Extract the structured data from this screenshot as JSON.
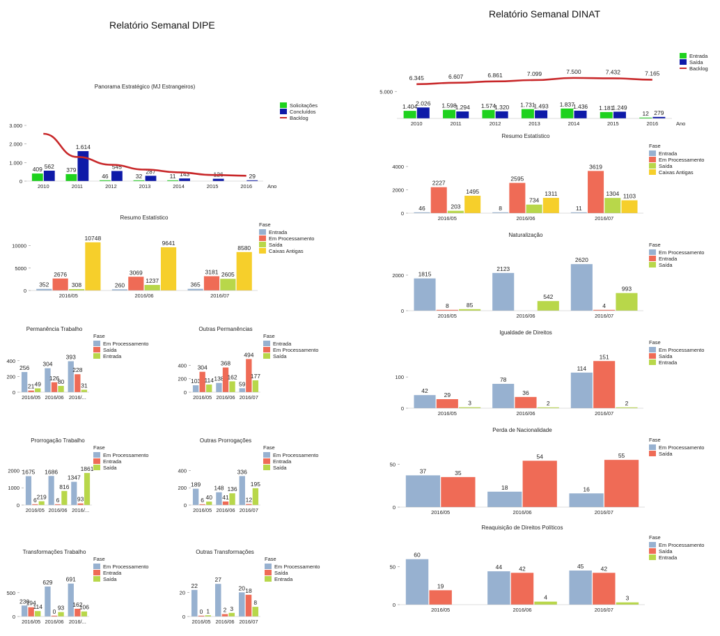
{
  "titles": {
    "dipe": "Relatório Semanal DIPE",
    "dinat": "Relatório Semanal DINAT"
  },
  "colors": {
    "blue": "#97b1d0",
    "red": "#ef6b56",
    "green": "#b8d74a",
    "yellow": "#f6cf2b",
    "bright_green": "#1ed21e",
    "navy": "#0e1aa8",
    "backlog": "#c8282a"
  },
  "chart_data": [
    {
      "id": "dipe-panorama",
      "type": "bar",
      "title": "Panorama Estratégico (MJ Estrangeiros)",
      "categories": [
        "2010",
        "2011",
        "2012",
        "2013",
        "2014",
        "2015",
        "2016"
      ],
      "x_suffix": "Ano",
      "series": [
        {
          "name": "Solicitações",
          "color": "#1ed21e",
          "values": [
            409,
            379,
            46,
            32,
            11,
            null,
            null
          ],
          "labels": [
            "409",
            "379",
            "46",
            "32",
            "11",
            "",
            ""
          ]
        },
        {
          "name": "Concluídos",
          "color": "#0e1aa8",
          "values": [
            562,
            1614,
            545,
            287,
            143,
            126,
            29
          ],
          "labels": [
            "562",
            "1.614",
            "545",
            "287",
            "143",
            "126",
            "29"
          ]
        },
        {
          "name": "Backlog",
          "color": "#c8282a",
          "type": "line",
          "values": [
            2550,
            1300,
            880,
            620,
            470,
            330,
            290
          ]
        }
      ],
      "ylim": [
        0,
        3000
      ],
      "yticks": [
        0,
        1000,
        2000,
        3000
      ],
      "ytick_labels": [
        "0",
        "1.000",
        "2.000",
        "3.000"
      ],
      "legend": "top-right"
    },
    {
      "id": "dipe-resumo",
      "type": "bar",
      "title": "Resumo Estatístico",
      "legend_title": "Fase",
      "categories": [
        "2016/05",
        "2016/06",
        "2016/07"
      ],
      "series": [
        {
          "name": "Entrada",
          "color": "#97b1d0",
          "values": [
            352,
            260,
            365
          ]
        },
        {
          "name": "Em Processamento",
          "color": "#ef6b56",
          "values": [
            2676,
            3069,
            3181
          ]
        },
        {
          "name": "Saída",
          "color": "#b8d74a",
          "values": [
            308,
            1237,
            2605
          ]
        },
        {
          "name": "Caixas Antigas",
          "color": "#f6cf2b",
          "values": [
            10748,
            9641,
            8580
          ]
        }
      ],
      "ylim": [
        0,
        11500
      ],
      "yticks": [
        0,
        5000,
        10000
      ],
      "legend": "right"
    },
    {
      "id": "dipe-permanencia",
      "type": "bar",
      "title": "Permanência Trabalho",
      "legend_title": "Fase",
      "categories": [
        "2016/05",
        "2016/06",
        "2016/..."
      ],
      "series": [
        {
          "name": "Em Processamento",
          "color": "#97b1d0",
          "values": [
            256,
            304,
            393
          ]
        },
        {
          "name": "Saída",
          "color": "#ef6b56",
          "values": [
            21,
            126,
            228
          ]
        },
        {
          "name": "Entrada",
          "color": "#b8d74a",
          "values": [
            49,
            80,
            31
          ]
        }
      ],
      "ylim": [
        0,
        460
      ],
      "yticks": [
        0,
        200,
        400
      ],
      "legend": "right"
    },
    {
      "id": "dipe-outras-permanencias",
      "type": "bar",
      "title": "Outras Permanências",
      "legend_title": "Fase",
      "categories": [
        "2016/05",
        "2016/06",
        "2016/07"
      ],
      "series": [
        {
          "name": "Entrada",
          "color": "#97b1d0",
          "values": [
            103,
            138,
            59
          ]
        },
        {
          "name": "Em Processamento",
          "color": "#ef6b56",
          "values": [
            304,
            368,
            494
          ]
        },
        {
          "name": "Saída",
          "color": "#b8d74a",
          "values": [
            114,
            162,
            177
          ]
        }
      ],
      "ylim": [
        0,
        540
      ],
      "yticks": [
        0,
        200,
        400
      ],
      "legend": "right"
    },
    {
      "id": "dipe-prorrogacao",
      "type": "bar",
      "title": "Prorrogação Trabalho",
      "legend_title": "Fase",
      "categories": [
        "2016/05",
        "2016/06",
        "2016/..."
      ],
      "series": [
        {
          "name": "Em Processamento",
          "color": "#97b1d0",
          "values": [
            1675,
            1686,
            1347
          ]
        },
        {
          "name": "Entrada",
          "color": "#ef6b56",
          "values": [
            6,
            6,
            93
          ]
        },
        {
          "name": "Saída",
          "color": "#b8d74a",
          "values": [
            219,
            816,
            1861
          ]
        }
      ],
      "ylim": [
        0,
        2100
      ],
      "yticks": [
        0,
        1000,
        2000
      ],
      "legend": "right"
    },
    {
      "id": "dipe-outras-prorrogacoes",
      "type": "bar",
      "title": "Outras Prorrogações",
      "legend_title": "Fase",
      "categories": [
        "2016/05",
        "2016/06",
        "2016/07"
      ],
      "series": [
        {
          "name": "Em Processamento",
          "color": "#97b1d0",
          "values": [
            189,
            148,
            336
          ]
        },
        {
          "name": "Entrada",
          "color": "#ef6b56",
          "values": [
            6,
            41,
            12
          ]
        },
        {
          "name": "Saída",
          "color": "#b8d74a",
          "values": [
            40,
            136,
            195
          ]
        }
      ],
      "ylim": [
        0,
        420
      ],
      "yticks": [
        0,
        200,
        400
      ],
      "legend": "right"
    },
    {
      "id": "dipe-transformacoes",
      "type": "bar",
      "title": "Transformações Trabalho",
      "legend_title": "Fase",
      "categories": [
        "2016/05",
        "2016/06",
        "2016/..."
      ],
      "series": [
        {
          "name": "Em Processamento",
          "color": "#97b1d0",
          "values": [
            230,
            629,
            691
          ]
        },
        {
          "name": "Entrada",
          "color": "#ef6b56",
          "values": [
            194,
            0,
            162
          ]
        },
        {
          "name": "Saída",
          "color": "#b8d74a",
          "values": [
            114,
            93,
            106
          ]
        }
      ],
      "ylim": [
        0,
        760
      ],
      "yticks": [
        0,
        500
      ],
      "ytick_labels": [
        "0",
        "500"
      ],
      "legend": "right"
    },
    {
      "id": "dipe-outras-transformacoes",
      "type": "bar",
      "title": "Outras Transformações",
      "legend_title": "Fase",
      "categories": [
        "2016/05",
        "2016/06",
        "2016/07"
      ],
      "series": [
        {
          "name": "Em Processamento",
          "color": "#97b1d0",
          "values": [
            22,
            27,
            20
          ]
        },
        {
          "name": "Saída",
          "color": "#ef6b56",
          "values": [
            0,
            2,
            18
          ]
        },
        {
          "name": "Entrada",
          "color": "#b8d74a",
          "values": [
            1,
            3,
            8
          ]
        }
      ],
      "ylim": [
        0,
        30
      ],
      "yticks": [
        0,
        20
      ],
      "legend": "right"
    },
    {
      "id": "dinat-panorama",
      "type": "bar",
      "title": "",
      "categories": [
        "2010",
        "2011",
        "2012",
        "2013",
        "2014",
        "2015",
        "2016"
      ],
      "x_suffix": "Ano",
      "series": [
        {
          "name": "Entrada",
          "color": "#1ed21e",
          "values": [
            1404,
            1598,
            1574,
            1731,
            1837,
            1181,
            12
          ],
          "labels": [
            "1.404",
            "1.598",
            "1.574",
            "1.731",
            "1.837",
            "1.181",
            "12"
          ]
        },
        {
          "name": "Saída",
          "color": "#0e1aa8",
          "values": [
            2026,
            1294,
            1320,
            1493,
            1436,
            1249,
            279
          ],
          "labels": [
            "2.026",
            "1.294",
            "1.320",
            "1.493",
            "1.436",
            "1.249",
            "279"
          ]
        },
        {
          "name": "Backlog",
          "color": "#c8282a",
          "type": "line",
          "values": [
            6345,
            6607,
            6861,
            7099,
            7500,
            7432,
            7165
          ],
          "labels": [
            "6.345",
            "6.607",
            "6.861",
            "7.099",
            "7.500",
            "7.432",
            "7.165"
          ]
        }
      ],
      "ylim": [
        0,
        8000
      ],
      "yticks": [
        5000
      ],
      "ytick_labels": [
        "5.000"
      ],
      "legend": "top-right"
    },
    {
      "id": "dinat-resumo",
      "type": "bar",
      "title": "Resumo Estatístico",
      "legend_title": "Fase",
      "categories": [
        "2016/05",
        "2016/06",
        "2016/07"
      ],
      "series": [
        {
          "name": "Entrada",
          "color": "#97b1d0",
          "values": [
            46,
            8,
            11
          ]
        },
        {
          "name": "Em Processamento",
          "color": "#ef6b56",
          "values": [
            2227,
            2595,
            3619
          ]
        },
        {
          "name": "Saída",
          "color": "#b8d74a",
          "values": [
            203,
            734,
            1304
          ]
        },
        {
          "name": "Caixas Antigas",
          "color": "#f6cf2b",
          "values": [
            1495,
            1311,
            1103
          ]
        }
      ],
      "ylim": [
        0,
        4300
      ],
      "yticks": [
        0,
        2000,
        4000
      ],
      "legend": "right"
    },
    {
      "id": "dinat-naturalizacao",
      "type": "bar",
      "title": "Naturalização",
      "legend_title": "Fase",
      "categories": [
        "2016/05",
        "2016/06",
        "2016/07"
      ],
      "series": [
        {
          "name": "Em Processamento",
          "color": "#97b1d0",
          "values": [
            1815,
            2123,
            2620
          ]
        },
        {
          "name": "Entrada",
          "color": "#ef6b56",
          "values": [
            8,
            null,
            4
          ]
        },
        {
          "name": "Saída",
          "color": "#b8d74a",
          "values": [
            85,
            542,
            993
          ]
        }
      ],
      "ylim": [
        0,
        2900
      ],
      "yticks": [
        0,
        2000
      ],
      "legend": "right"
    },
    {
      "id": "dinat-igualdade",
      "type": "bar",
      "title": "Igualdade de Direitos",
      "legend_title": "Fase",
      "categories": [
        "2016/05",
        "2016/06",
        "2016/07"
      ],
      "series": [
        {
          "name": "Em Processamento",
          "color": "#97b1d0",
          "values": [
            42,
            78,
            114
          ]
        },
        {
          "name": "Saída",
          "color": "#ef6b56",
          "values": [
            29,
            36,
            151
          ]
        },
        {
          "name": "Entrada",
          "color": "#b8d74a",
          "values": [
            3,
            2,
            2
          ]
        }
      ],
      "ylim": [
        0,
        165
      ],
      "yticks": [
        0,
        100
      ],
      "legend": "right"
    },
    {
      "id": "dinat-perda",
      "type": "bar",
      "title": "Perda de Nacionalidade",
      "legend_title": "Fase",
      "categories": [
        "2016/05",
        "2016/06",
        "2016/07"
      ],
      "series": [
        {
          "name": "Em Processamento",
          "color": "#97b1d0",
          "values": [
            37,
            18,
            16
          ]
        },
        {
          "name": "Saída",
          "color": "#ef6b56",
          "values": [
            35,
            54,
            55
          ]
        }
      ],
      "ylim": [
        0,
        60
      ],
      "yticks": [
        0,
        50
      ],
      "legend": "right"
    },
    {
      "id": "dinat-reaquisicao",
      "type": "bar",
      "title": "Reaquisição de Direitos Políticos",
      "legend_title": "Fase",
      "categories": [
        "2016/05",
        "2016/06",
        "2016/07"
      ],
      "series": [
        {
          "name": "Em Processamento",
          "color": "#97b1d0",
          "values": [
            60,
            44,
            45
          ]
        },
        {
          "name": "Saída",
          "color": "#ef6b56",
          "values": [
            19,
            42,
            42
          ]
        },
        {
          "name": "Entrada",
          "color": "#b8d74a",
          "values": [
            null,
            4,
            3
          ]
        }
      ],
      "ylim": [
        0,
        68
      ],
      "yticks": [
        0,
        50
      ],
      "legend": "right"
    }
  ]
}
